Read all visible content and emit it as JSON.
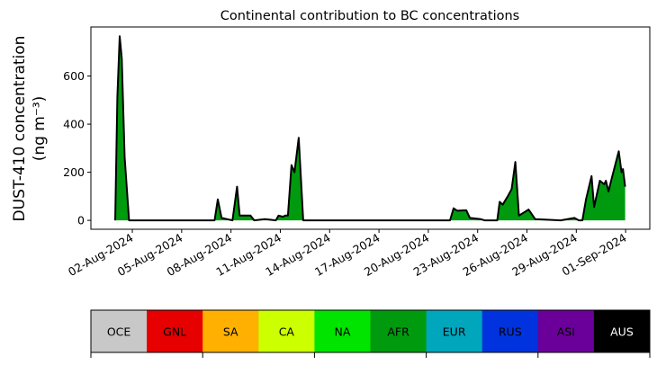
{
  "chart_data": {
    "type": "area",
    "title": "Continental contribution to BC concentrations",
    "ylabel_line1": "DUST-410 concentration",
    "ylabel_line2": "(ng m⁻³)",
    "xlabel": "",
    "x_unit": "days since 02-Aug-2024",
    "xlim": [
      -2.52,
      31.47
    ],
    "ylim": [
      -37,
      804
    ],
    "yticks": [
      0,
      200,
      400,
      600
    ],
    "xticks": [
      {
        "day": 0,
        "label": "02-Aug-2024"
      },
      {
        "day": 3,
        "label": "05-Aug-2024"
      },
      {
        "day": 6,
        "label": "08-Aug-2024"
      },
      {
        "day": 9,
        "label": "11-Aug-2024"
      },
      {
        "day": 12,
        "label": "14-Aug-2024"
      },
      {
        "day": 15,
        "label": "17-Aug-2024"
      },
      {
        "day": 18,
        "label": "20-Aug-2024"
      },
      {
        "day": 21,
        "label": "23-Aug-2024"
      },
      {
        "day": 24,
        "label": "26-Aug-2024"
      },
      {
        "day": 27,
        "label": "29-Aug-2024"
      },
      {
        "day": 30,
        "label": "01-Sep-2024"
      }
    ],
    "series": [
      {
        "name": "AFR",
        "color": "#009a0e",
        "x": [
          -1.04,
          -0.91,
          -0.77,
          -0.64,
          -0.47,
          -0.2,
          5.0,
          5.2,
          5.43,
          6.09,
          6.37,
          6.53,
          7.19,
          7.41,
          8.07,
          8.73,
          8.89,
          9.17,
          9.28,
          9.46,
          9.68,
          9.86,
          10.12,
          10.39,
          19.32,
          19.54,
          19.76,
          20.31,
          20.53,
          21.19,
          21.42,
          22.19,
          22.34,
          22.52,
          22.85,
          23.07,
          23.29,
          23.51,
          24.1,
          24.5,
          26.05,
          26.89,
          27.15,
          27.37,
          27.59,
          27.93,
          28.08,
          28.43,
          28.7,
          28.8,
          28.96,
          29.14,
          29.58,
          29.75,
          29.84,
          29.97
        ],
        "y": [
          0,
          512,
          766,
          673,
          262,
          0,
          0,
          87,
          10,
          0,
          140,
          20,
          20,
          0,
          5,
          0,
          20,
          15,
          20,
          20,
          230,
          200,
          343,
          0,
          0,
          50,
          40,
          42,
          10,
          5,
          0,
          0,
          77,
          65,
          102,
          130,
          243,
          20,
          45,
          5,
          0,
          10,
          0,
          0,
          87,
          184,
          55,
          165,
          150,
          165,
          120,
          170,
          287,
          200,
          213,
          140
        ]
      }
    ],
    "total_line_color": "#000000",
    "colorbar": [
      {
        "label": "OCE",
        "color": "#c8c8c8",
        "text_color": "#000000"
      },
      {
        "label": "GNL",
        "color": "#e60000",
        "text_color": "#000000"
      },
      {
        "label": "SA",
        "color": "#ffb000",
        "text_color": "#000000"
      },
      {
        "label": "CA",
        "color": "#ccff00",
        "text_color": "#000000"
      },
      {
        "label": "NA",
        "color": "#00e400",
        "text_color": "#000000"
      },
      {
        "label": "AFR",
        "color": "#009a0e",
        "text_color": "#000000"
      },
      {
        "label": "EUR",
        "color": "#00a6bc",
        "text_color": "#000000"
      },
      {
        "label": "RUS",
        "color": "#0033dd",
        "text_color": "#000000"
      },
      {
        "label": "ASI",
        "color": "#6a0099",
        "text_color": "#000000"
      },
      {
        "label": "AUS",
        "color": "#000000",
        "text_color": "#ffffff"
      }
    ]
  }
}
